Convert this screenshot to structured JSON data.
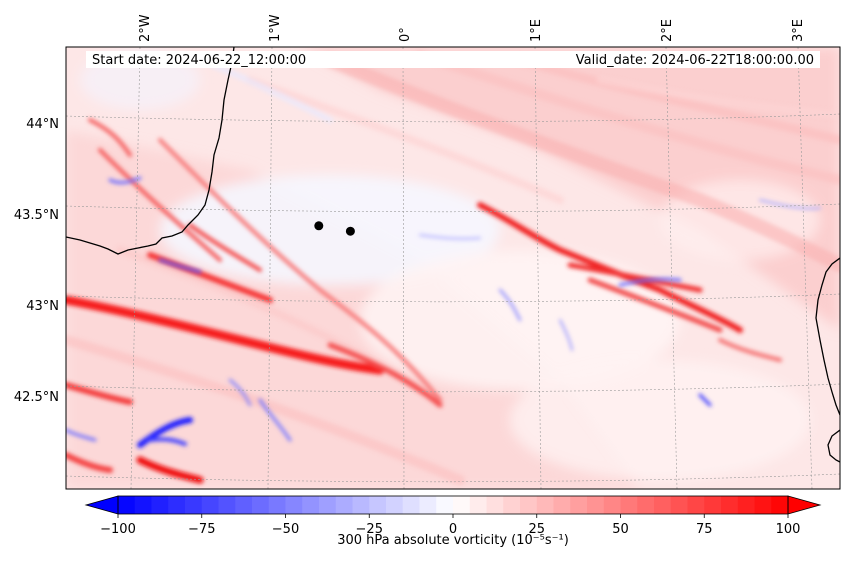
{
  "header": {
    "start_date": "Start date: 2024-06-22_12:00:00",
    "valid_date": "Valid_date: 2024-06-22T18:00:00.00"
  },
  "map": {
    "lon_ticks": [
      "2°W",
      "1°W",
      "0°",
      "1°E",
      "2°E",
      "3°E"
    ],
    "lat_ticks": [
      "44°N",
      "43.5°N",
      "43°N",
      "42.5°N"
    ],
    "points": [
      {
        "lon": -0.64,
        "lat": 43.39
      },
      {
        "lon": -0.4,
        "lat": 43.36
      }
    ]
  },
  "colorbar": {
    "label": "300 hPa absolute vorticity (10⁻⁵s⁻¹)",
    "ticks": [
      "−100",
      "−75",
      "−50",
      "−25",
      "0",
      "25",
      "50",
      "75",
      "100"
    ],
    "range": [
      -100,
      100
    ],
    "colormap": "bwr",
    "colors": {
      "negative": "#0000ff",
      "zero": "#ffffff",
      "positive": "#ff0000"
    }
  }
}
